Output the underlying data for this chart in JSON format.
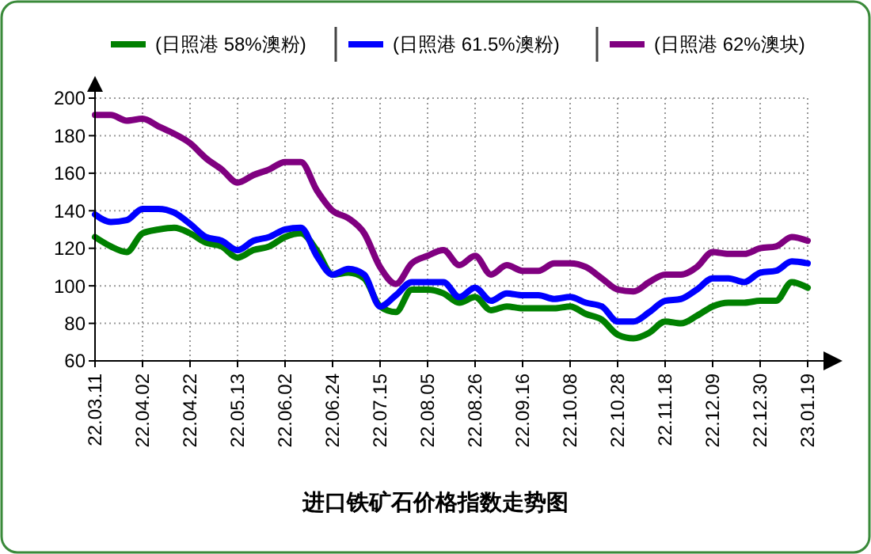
{
  "chart_data": {
    "type": "line",
    "title": "进口铁矿石价格指数走势图",
    "categories": [
      "22.03.11",
      null,
      null,
      "22.04.02",
      null,
      null,
      "22.04.22",
      null,
      null,
      "22.05.13",
      null,
      null,
      "22.06.02",
      null,
      null,
      "22.06.24",
      null,
      null,
      "22.07.15",
      null,
      null,
      "22.08.05",
      null,
      null,
      "22.08.26",
      null,
      null,
      "22.09.16",
      null,
      null,
      "22.10.08",
      null,
      null,
      "22.10.28",
      null,
      null,
      "22.11.18",
      null,
      null,
      "22.12.09",
      null,
      null,
      "22.12.30",
      null,
      null,
      "23.01.19"
    ],
    "series": [
      {
        "name": "(日照港 58%澳粉)",
        "color": "#008000",
        "values": [
          126,
          121,
          118,
          128,
          130,
          131,
          128,
          123,
          121,
          115,
          119,
          121,
          126,
          128,
          119,
          106,
          107,
          104,
          89,
          86,
          98,
          98,
          96,
          91,
          94,
          87,
          89,
          88,
          88,
          88,
          89,
          85,
          82,
          74,
          72,
          75,
          81,
          80,
          84,
          89,
          91,
          91,
          92,
          92,
          102,
          99
        ]
      },
      {
        "name": "(日照港 61.5%澳粉)",
        "color": "#0000ff",
        "values": [
          138,
          134,
          135,
          141,
          141,
          139,
          133,
          126,
          124,
          119,
          124,
          126,
          130,
          131,
          116,
          106,
          109,
          106,
          89,
          95,
          102,
          102,
          102,
          94,
          99,
          92,
          96,
          95,
          95,
          93,
          94,
          91,
          89,
          81,
          81,
          86,
          92,
          93,
          98,
          104,
          104,
          102,
          107,
          108,
          113,
          112
        ]
      },
      {
        "name": "(日照港 62%澳块)",
        "color": "#800080",
        "values": [
          191,
          191,
          188,
          189,
          185,
          181,
          176,
          168,
          162,
          155,
          159,
          162,
          166,
          166,
          151,
          140,
          136,
          128,
          110,
          101,
          112,
          116,
          119,
          111,
          116,
          106,
          111,
          108,
          108,
          112,
          112,
          110,
          104,
          98,
          97,
          102,
          106,
          106,
          110,
          118,
          117,
          117,
          120,
          121,
          126,
          124
        ]
      }
    ],
    "ylim": [
      60,
      200
    ],
    "yticks": [
      60,
      80,
      100,
      120,
      140,
      160,
      180,
      200
    ],
    "grid": true,
    "legend": "top"
  }
}
